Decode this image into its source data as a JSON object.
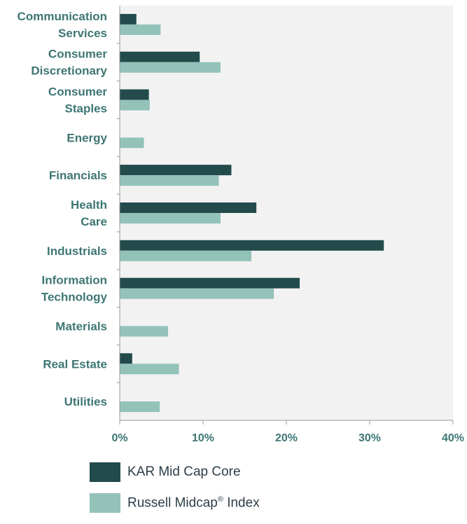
{
  "chart_data": {
    "type": "bar",
    "orientation": "horizontal",
    "categories": [
      [
        "Communication",
        "Services"
      ],
      [
        "Consumer",
        "Discretionary"
      ],
      [
        "Consumer",
        "Staples"
      ],
      [
        "Energy"
      ],
      [
        "Financials"
      ],
      [
        "Health",
        "Care"
      ],
      [
        "Industrials"
      ],
      [
        "Information",
        "Technology"
      ],
      [
        "Materials"
      ],
      [
        "Real Estate"
      ],
      [
        "Utilities"
      ]
    ],
    "series": [
      {
        "name": "KAR Mid Cap Core",
        "color": "#234b4b",
        "values": [
          2.0,
          9.6,
          3.5,
          0,
          13.4,
          16.4,
          31.7,
          21.6,
          0,
          1.5,
          0
        ]
      },
      {
        "name": "Russell Midcap® Index",
        "color": "#93c2b9",
        "values": [
          4.9,
          12.1,
          3.6,
          2.9,
          11.9,
          12.1,
          15.8,
          18.5,
          5.8,
          7.1,
          4.8
        ]
      }
    ],
    "xlim": [
      0,
      40
    ],
    "xticks": [
      0,
      10,
      20,
      30,
      40
    ],
    "tick_format": "{v}%",
    "grid": false,
    "plot_background": "#f2f2f2",
    "legend_position": "bottom-left"
  },
  "legend": {
    "kar_label": "KAR Mid Cap Core",
    "russell_label_main": "Russell Midcap",
    "russell_label_mark": "®",
    "russell_label_tail": " Index"
  }
}
